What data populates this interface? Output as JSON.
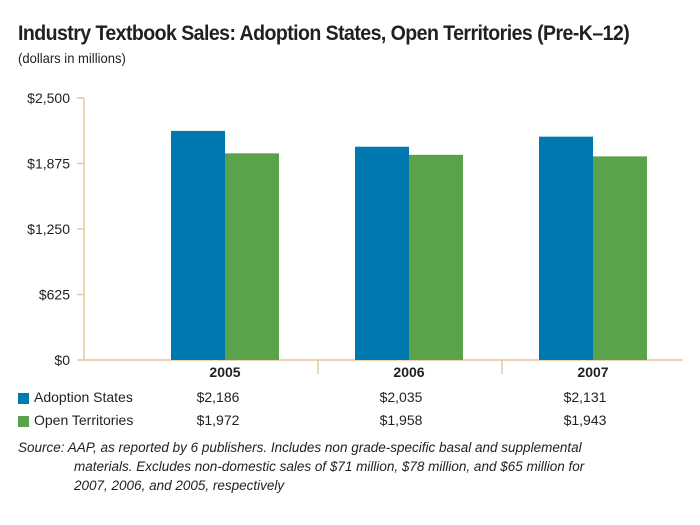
{
  "title": "Industry Textbook Sales: Adoption States, Open Territories (Pre-K–12)",
  "subtitle": "(dollars in millions)",
  "colors": {
    "adoption": "#0079b1",
    "open": "#5ba34a",
    "axis": "#e3c99a"
  },
  "chart_data": {
    "type": "bar",
    "categories": [
      "2005",
      "2006",
      "2007"
    ],
    "series": [
      {
        "name": "Adoption States",
        "values": [
          2186,
          2035,
          2131
        ],
        "labels": [
          "$2,186",
          "$2,035",
          "$2,131"
        ]
      },
      {
        "name": "Open Territories",
        "values": [
          1972,
          1958,
          1943
        ],
        "labels": [
          "$1,972",
          "$1,958",
          "$1,943"
        ]
      }
    ],
    "yticks": [
      "$0",
      "$625",
      "$1,250",
      "$1,875",
      "$2,500"
    ],
    "ylim": [
      0,
      2500
    ]
  },
  "source": {
    "line1": "Source: AAP, as reported by 6 publishers. Includes non grade-specific basal and supplemental",
    "line2": "materials. Excludes non-domestic sales of $71 million, $78 million, and $65 million for",
    "line3": "2007, 2006, and 2005, respectively"
  }
}
